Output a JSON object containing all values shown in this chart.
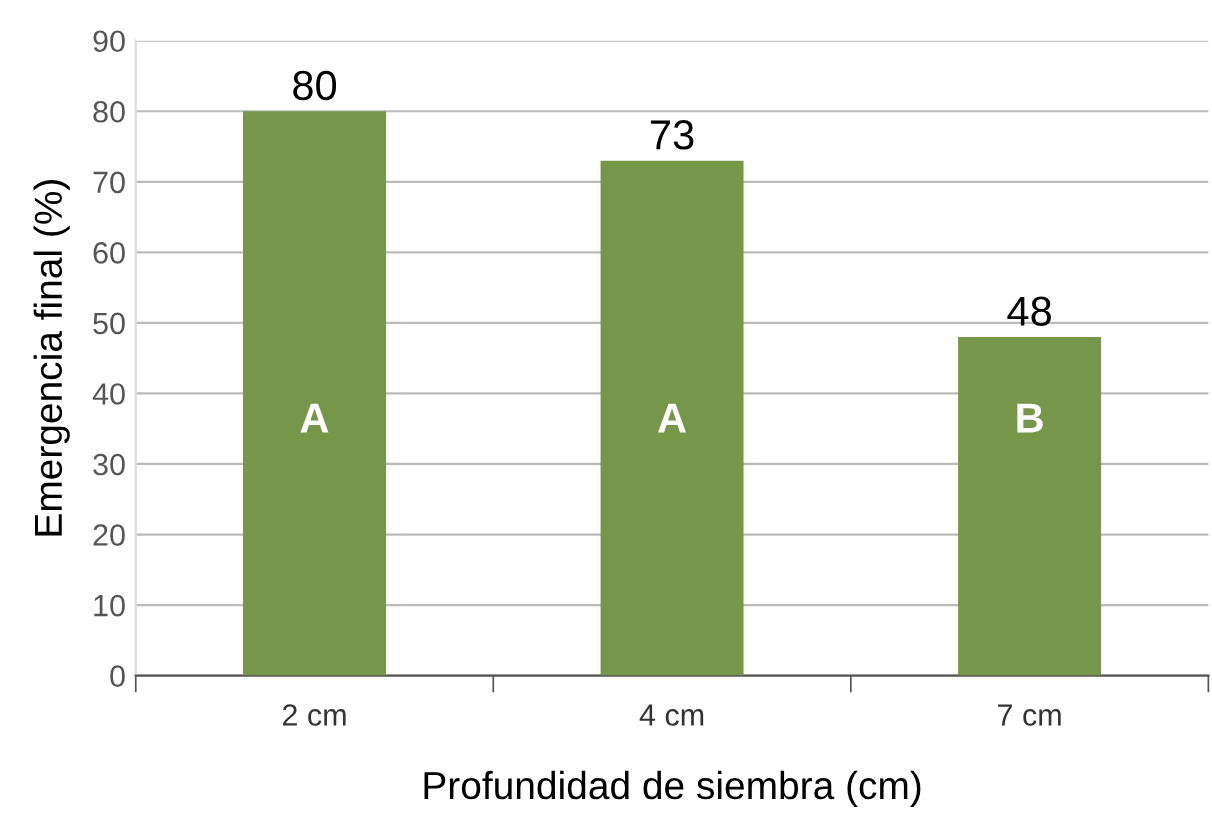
{
  "chart_data": {
    "type": "bar",
    "xlabel": "Profundidad de siembra (cm)",
    "ylabel": "Emergencia final (%)",
    "categories": [
      "2 cm",
      "4 cm",
      "7 cm"
    ],
    "values": [
      80,
      73,
      48
    ],
    "color": "#76964a",
    "ylim": [
      0,
      90
    ],
    "yticks": [
      0,
      10,
      20,
      30,
      40,
      50,
      60,
      70,
      80,
      90
    ],
    "grid": "y",
    "data_labels": true,
    "annotations": [
      "A",
      "A",
      "B"
    ]
  }
}
